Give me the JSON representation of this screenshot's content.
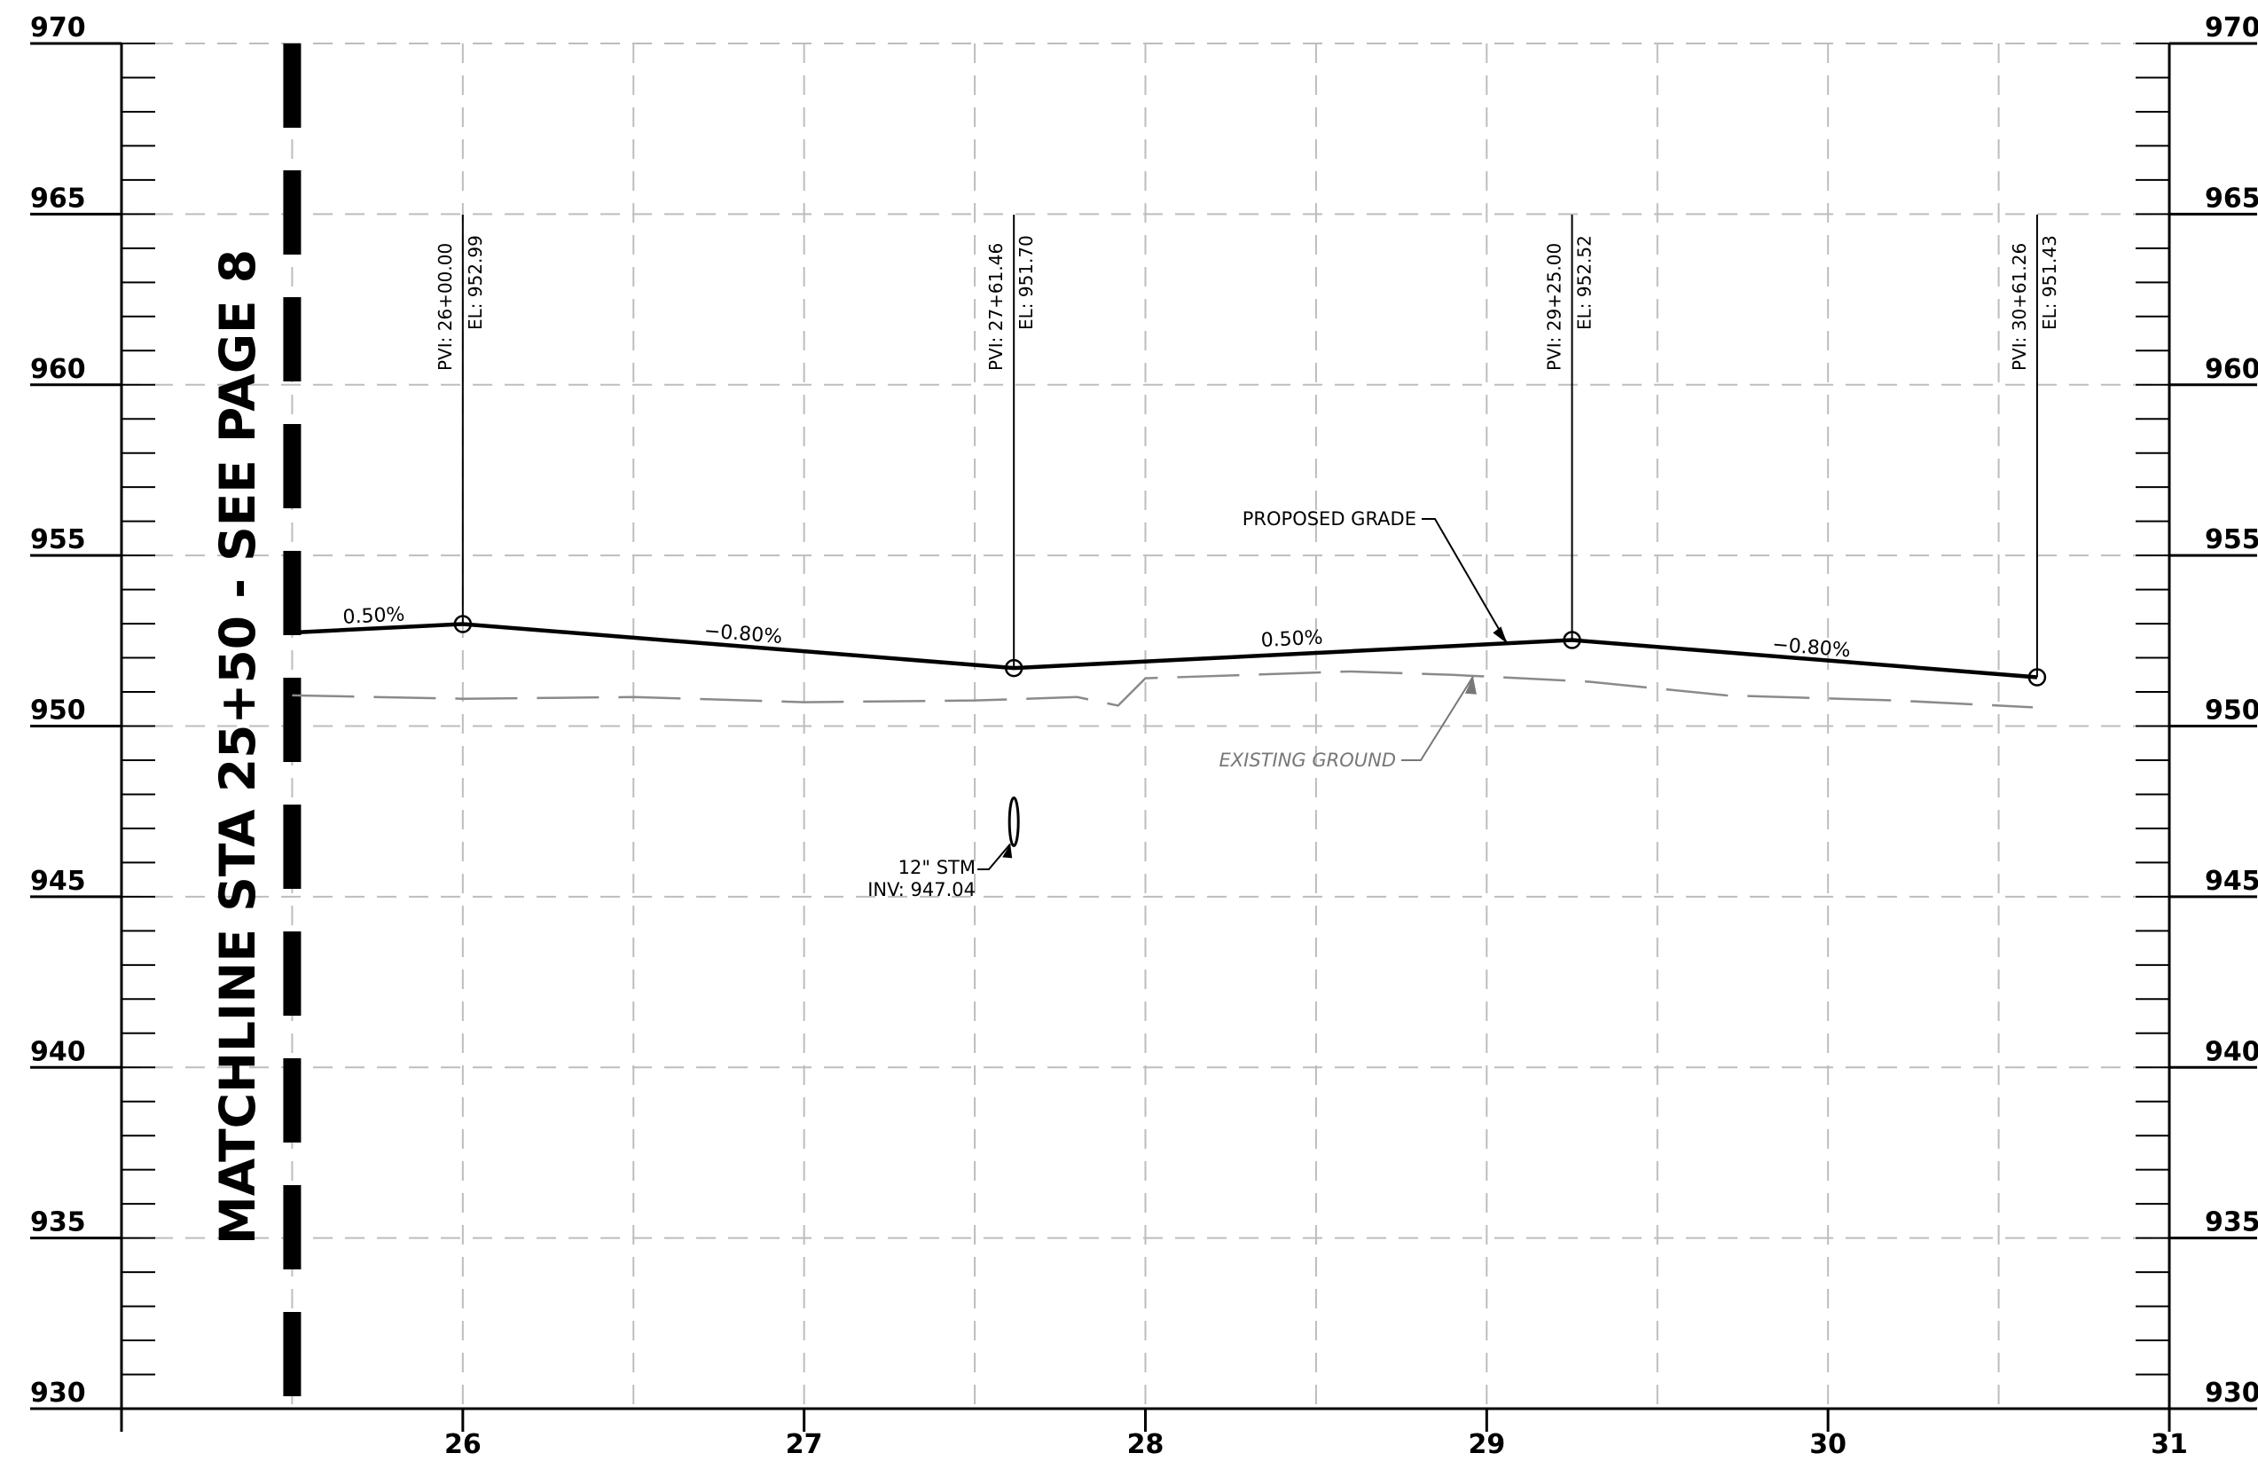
{
  "chart_data": {
    "type": "line",
    "title": "",
    "xlabel": "",
    "ylabel": "",
    "xlim": [
      25,
      31
    ],
    "ylim": [
      930,
      970
    ],
    "x_ticks": [
      26,
      27,
      28,
      29,
      30,
      31
    ],
    "y_ticks": [
      930,
      935,
      940,
      945,
      950,
      955,
      960,
      965,
      970
    ],
    "grid": true,
    "series": [
      {
        "name": "PROPOSED GRADE",
        "style": "solid",
        "points": [
          [
            25.5,
            952.74
          ],
          [
            26.0,
            952.99
          ],
          [
            27.6146,
            951.7
          ],
          [
            29.25,
            952.52
          ],
          [
            30.6126,
            951.43
          ]
        ]
      },
      {
        "name": "EXISTING GROUND",
        "style": "dashed",
        "points": [
          [
            25.5,
            950.9
          ],
          [
            26.0,
            950.8
          ],
          [
            26.5,
            950.85
          ],
          [
            27.0,
            950.7
          ],
          [
            27.5,
            950.75
          ],
          [
            27.8,
            950.85
          ],
          [
            27.92,
            950.6
          ],
          [
            28.0,
            951.4
          ],
          [
            28.3,
            951.5
          ],
          [
            28.6,
            951.6
          ],
          [
            28.9,
            951.5
          ],
          [
            29.3,
            951.3
          ],
          [
            29.7,
            950.9
          ],
          [
            30.2,
            950.75
          ],
          [
            30.6,
            950.55
          ]
        ]
      }
    ],
    "pvis": [
      {
        "station": 26.0,
        "elev": 952.99,
        "pvi_label": "PVI:  26+00.00",
        "el_label": "EL:  952.99"
      },
      {
        "station": 27.6146,
        "elev": 951.7,
        "pvi_label": "PVI:  27+61.46",
        "el_label": "EL:  951.70"
      },
      {
        "station": 29.25,
        "elev": 952.52,
        "pvi_label": "PVI:  29+25.00",
        "el_label": "EL:  952.52"
      },
      {
        "station": 30.6126,
        "elev": 951.43,
        "pvi_label": "PVI:  30+61.26",
        "el_label": "EL:  951.43"
      }
    ],
    "grade_labels": [
      {
        "text": "0.50%",
        "station": 25.74,
        "elev": 953.05
      },
      {
        "text": "−0.80%",
        "station": 26.82,
        "elev": 952.52
      },
      {
        "text": "0.50%",
        "station": 28.43,
        "elev": 952.37
      },
      {
        "text": "−0.80%",
        "station": 29.95,
        "elev": 952.12
      }
    ],
    "structure": {
      "line1": "12\"  STM",
      "line2": "INV: 947.04",
      "station": 27.6146,
      "elev": 947.04
    },
    "annotations": {
      "proposed_grade": "PROPOSED GRADE",
      "existing_ground": "EXISTING GROUND"
    },
    "matchline": {
      "text": "MATCHLINE STA 25+50 - SEE  PAGE 8",
      "station": 25.5
    }
  },
  "colors": {
    "grid": "#bdbdbd",
    "axis": "#000000",
    "proposed": "#000000",
    "existing": "#8a8a8a"
  }
}
